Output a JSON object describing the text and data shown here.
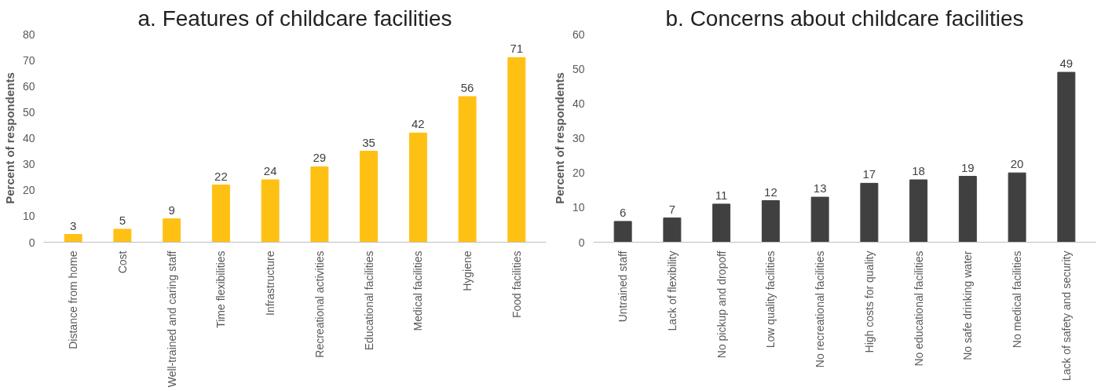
{
  "chart_data": [
    {
      "type": "bar",
      "title": "a. Features of childcare facilities",
      "ylabel": "Percent of respondents",
      "categories": [
        "Distance from home",
        "Cost",
        "Well-trained and caring staff",
        "Time flexibilities",
        "Infrastructure",
        "Recreational activities",
        "Educational facilities",
        "Medical facilities",
        "Hygiene",
        "Food facilities"
      ],
      "values": [
        3,
        5,
        9,
        22,
        24,
        29,
        35,
        42,
        56,
        71
      ],
      "color": "#ffc014",
      "ylim": [
        0,
        80
      ],
      "yticks": [
        0,
        10,
        20,
        30,
        40,
        50,
        60,
        70,
        80
      ],
      "data_labels": true
    },
    {
      "type": "bar",
      "title": "b. Concerns about childcare facilities",
      "ylabel": "Percent of respondents",
      "categories": [
        "Untrained staff",
        "Lack of flexibility",
        "No pickup and dropoff",
        "Low quality facilities",
        "No recreational facilities",
        "High costs for quality",
        "No educational facilities",
        "No safe drinking water",
        "No medical facilities",
        "Lack of safety and security"
      ],
      "values": [
        6,
        7,
        11,
        12,
        13,
        17,
        18,
        19,
        20,
        49
      ],
      "color": "#404040",
      "ylim": [
        0,
        60
      ],
      "yticks": [
        0,
        10,
        20,
        30,
        40,
        50,
        60
      ],
      "data_labels": true
    }
  ]
}
